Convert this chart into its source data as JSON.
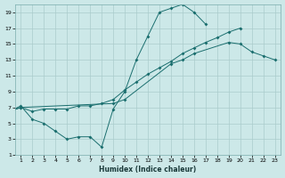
{
  "xlabel": "Humidex (Indice chaleur)",
  "bg_color": "#cce8e8",
  "grid_color": "#aacccc",
  "line_color": "#1a6e6e",
  "xlim": [
    0.5,
    23.5
  ],
  "ylim": [
    1,
    20
  ],
  "xticks": [
    1,
    2,
    3,
    4,
    5,
    6,
    7,
    8,
    9,
    10,
    11,
    12,
    13,
    14,
    15,
    16,
    17,
    18,
    19,
    20,
    21,
    22,
    23
  ],
  "yticks": [
    1,
    3,
    5,
    7,
    9,
    11,
    13,
    15,
    17,
    19
  ],
  "s1x": [
    0,
    1,
    2,
    3,
    4,
    5,
    6,
    7,
    8,
    9,
    10,
    11,
    12,
    13,
    14,
    15,
    16,
    17
  ],
  "s1y": [
    6.5,
    7.2,
    5.5,
    5.0,
    4.0,
    3.0,
    3.3,
    3.3,
    2.0,
    6.8,
    9.0,
    13.0,
    16.0,
    19.0,
    19.5,
    20.0,
    19.0,
    17.5
  ],
  "s2x": [
    0,
    1,
    2,
    3,
    4,
    5,
    6,
    7,
    8,
    9,
    10,
    11,
    12,
    13,
    14,
    15,
    16,
    17,
    18,
    19,
    20,
    21,
    22,
    23
  ],
  "s2y": [
    6.5,
    7.0,
    6.5,
    6.8,
    6.8,
    6.8,
    7.2,
    7.2,
    7.5,
    8.0,
    9.2,
    10.2,
    11.2,
    12.0,
    12.8,
    13.8,
    14.5,
    15.2,
    15.8,
    16.5,
    17.0,
    null,
    null,
    null
  ],
  "s3x": [
    0,
    1,
    9,
    10,
    14,
    15,
    16,
    19,
    20,
    21,
    22,
    23
  ],
  "s3y": [
    6.5,
    7.0,
    7.5,
    8.0,
    12.5,
    13.0,
    13.8,
    15.2,
    15.0,
    14.0,
    13.5,
    13.0
  ]
}
